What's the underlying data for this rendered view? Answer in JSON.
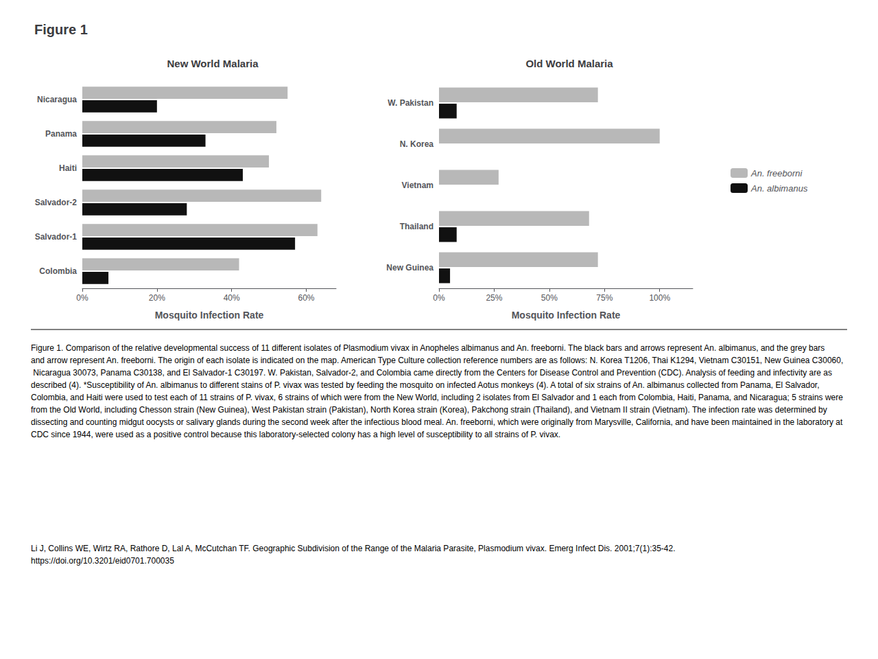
{
  "title": "Figure 1",
  "annotations": [
    "Figure 1. Comparison of the relative developmental success of 11 different isolates of Plasmodium vivax in Anopheles albimanus and An. freeborni. The black bars and arrows represent An. albimanus, and the grey bars and arrow represent An. freeborni. The origin of each isolate is indicated on the map. American Type Culture collection reference numbers are as follows: N. Korea T1206, Thai K1294, Vietnam C30151, New Guinea C30060, Nicaragua 30073, Panama C30138, and El Salvador-1 C30197. W. Pakistan, Salvador-2, and Colombia came directly from the Centers for Disease Control and Prevention (CDC). Analysis of feeding and infectivity are as described (4). *Susceptibility of An. albimanus to different stains of P. vivax was tested by feeding the mosquito on infected Aotus monkeys (4). A total of six strains of An. albimanus collected from Panama, El Salvador, Colombia, and Haiti were used to test each of 11 strains of P. vivax, 6 strains of which were from the New World, including 2 isolates from El Salvador and 1 each from Colombia, Haiti, Panama, and Nicaragua; 5 strains were from the Old World, including Chesson strain (New Guinea), West Pakistan strain (Pakistan), North Korea strain (Korea), Pakchong strain (Thailand), and Vietnam II strain (Vietnam). The infection rate was determined by dissecting and counting midgut oocysts or salivary glands during the second week after the infectious blood meal. An. freeborni, which were originally from Marysville, California, and have been maintained in the laboratory at CDC since 1944, were used as a positive control because this laboratory-selected colony has a high level of susceptibility to all strains of P. vivax.",
    "Li J, Collins WE, Wirtz RA, Rathore D, Lal A, McCutchan TF. Geographic Subdivision of the Range of the Malaria Parasite, Plasmodium vivax. Emerg Infect Dis. 2001;7(1):35-42.\nhttps://doi.org/10.3201/eid0701.700035"
  ],
  "chart_data": [
    {
      "type": "bar",
      "orientation": "horizontal",
      "title": "New World Malaria",
      "xlabel": "Mosquito Infection Rate",
      "categories": [
        "Nicaragua",
        "Panama",
        "Haiti",
        "Salvador-2",
        "Salvador-1",
        "Colombia"
      ],
      "series": [
        {
          "name": "An. freeborni",
          "color": "#b8b8b8",
          "values": [
            55,
            52,
            50,
            64,
            63,
            42
          ]
        },
        {
          "name": "An. albimanus",
          "color": "#111111",
          "values": [
            20,
            33,
            43,
            28,
            57,
            7
          ]
        }
      ],
      "xlim": [
        0,
        68
      ],
      "xticks": [
        {
          "value": 0,
          "label": "0%"
        },
        {
          "value": 20,
          "label": "20%"
        },
        {
          "value": 40,
          "label": "40%"
        },
        {
          "value": 60,
          "label": "60%"
        }
      ],
      "grid": false
    },
    {
      "type": "bar",
      "orientation": "horizontal",
      "title": "Old World Malaria",
      "xlabel": "Mosquito Infection Rate",
      "categories": [
        "W. Pakistan",
        "N. Korea",
        "Vietnam",
        "Thailand",
        "New Guinea"
      ],
      "series": [
        {
          "name": "An. freeborni",
          "color": "#b8b8b8",
          "values": [
            72,
            100,
            27,
            68,
            72
          ]
        },
        {
          "name": "An. albimanus",
          "color": "#111111",
          "values": [
            8,
            0,
            0,
            8,
            5
          ]
        }
      ],
      "xlim": [
        0,
        115
      ],
      "xticks": [
        {
          "value": 0,
          "label": "0%"
        },
        {
          "value": 25,
          "label": "25%"
        },
        {
          "value": 50,
          "label": "50%"
        },
        {
          "value": 75,
          "label": "75%"
        },
        {
          "value": 100,
          "label": "100%"
        }
      ],
      "grid": false,
      "legend": "right"
    }
  ]
}
